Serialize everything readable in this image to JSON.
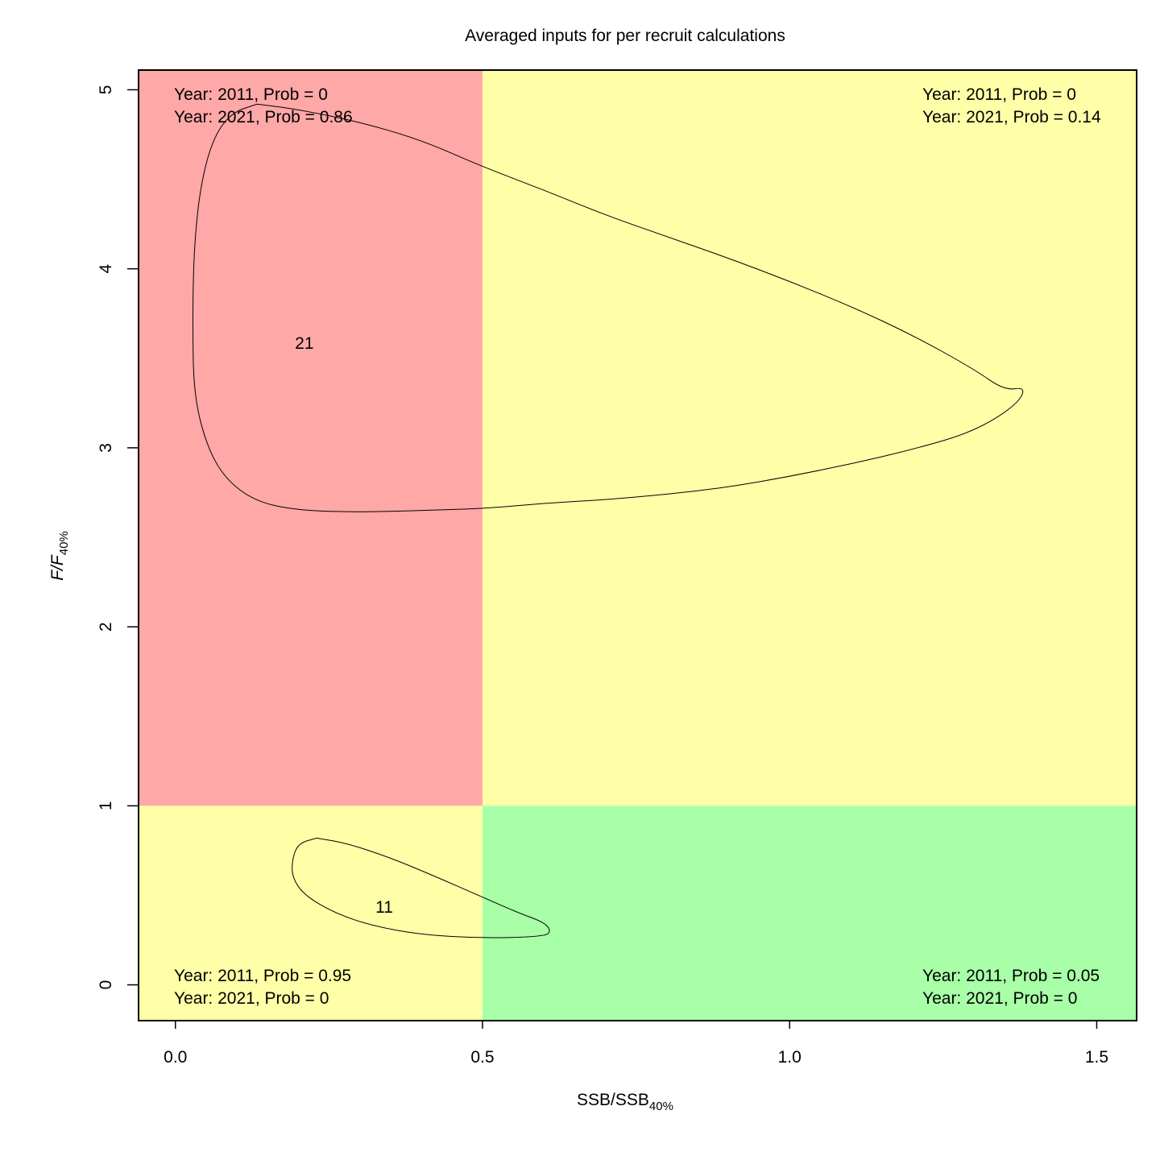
{
  "chart_data": {
    "type": "kobe-contour",
    "title": "Averaged inputs for per recruit calculations",
    "xlabel": {
      "main": "SSB/SSB",
      "sub": "40%"
    },
    "ylabel": {
      "main": "F/F",
      "sub": "40%"
    },
    "xlim": [
      -0.06,
      1.565
    ],
    "ylim": [
      -0.2,
      5.11
    ],
    "x_ticks": [
      0.0,
      0.5,
      1.0,
      1.5
    ],
    "x_tick_labels": [
      "0.0",
      "0.5",
      "1.0",
      "1.5"
    ],
    "y_ticks": [
      0,
      1,
      2,
      3,
      4,
      5
    ],
    "y_tick_labels": [
      "0",
      "1",
      "2",
      "3",
      "4",
      "5"
    ],
    "reference_x": 0.5,
    "reference_y": 1.0,
    "quadrants": [
      {
        "name": "top-left",
        "x": [
          -0.06,
          0.5
        ],
        "y": [
          1,
          5.11
        ],
        "color": "#ffa8a8",
        "lines": [
          "Year: 2011, Prob = 0",
          "Year: 2021, Prob = 0.86"
        ]
      },
      {
        "name": "top-right",
        "x": [
          0.5,
          1.565
        ],
        "y": [
          1,
          5.11
        ],
        "color": "#ffffa8",
        "lines": [
          "Year: 2011, Prob = 0",
          "Year: 2021, Prob = 0.14"
        ]
      },
      {
        "name": "bottom-left",
        "x": [
          -0.06,
          0.5
        ],
        "y": [
          -0.2,
          1
        ],
        "color": "#ffffa8",
        "lines": [
          "Year: 2011, Prob = 0.95",
          "Year: 2021, Prob = 0"
        ]
      },
      {
        "name": "bottom-right",
        "x": [
          0.5,
          1.565
        ],
        "y": [
          -0.2,
          1
        ],
        "color": "#a8ffa8",
        "lines": [
          "Year: 2011, Prob = 0.05",
          "Year: 2021, Prob = 0"
        ]
      }
    ],
    "series": [
      {
        "name": "21",
        "label": "21",
        "label_pos": [
          0.21,
          3.59
        ],
        "points": [
          [
            0.133,
            4.92
          ],
          [
            0.2,
            4.89
          ],
          [
            0.3,
            4.82
          ],
          [
            0.4,
            4.72
          ],
          [
            0.5,
            4.57
          ],
          [
            0.6,
            4.44
          ],
          [
            0.7,
            4.3
          ],
          [
            0.8,
            4.18
          ],
          [
            0.9,
            4.06
          ],
          [
            1.0,
            3.93
          ],
          [
            1.1,
            3.79
          ],
          [
            1.2,
            3.63
          ],
          [
            1.3,
            3.44
          ],
          [
            1.35,
            3.32
          ],
          [
            1.385,
            3.34
          ],
          [
            1.37,
            3.24
          ],
          [
            1.3,
            3.09
          ],
          [
            1.2,
            2.99
          ],
          [
            1.1,
            2.91
          ],
          [
            1.0,
            2.84
          ],
          [
            0.9,
            2.78
          ],
          [
            0.8,
            2.74
          ],
          [
            0.7,
            2.71
          ],
          [
            0.6,
            2.69
          ],
          [
            0.5,
            2.66
          ],
          [
            0.4,
            2.65
          ],
          [
            0.3,
            2.64
          ],
          [
            0.2,
            2.65
          ],
          [
            0.13,
            2.7
          ],
          [
            0.08,
            2.83
          ],
          [
            0.05,
            3.02
          ],
          [
            0.03,
            3.3
          ],
          [
            0.028,
            3.7
          ],
          [
            0.03,
            4.1
          ],
          [
            0.04,
            4.45
          ],
          [
            0.06,
            4.72
          ],
          [
            0.09,
            4.87
          ],
          [
            0.133,
            4.92
          ]
        ]
      },
      {
        "name": "11",
        "label": "11",
        "label_pos": [
          0.34,
          0.44
        ],
        "points": [
          [
            0.23,
            0.82
          ],
          [
            0.28,
            0.79
          ],
          [
            0.35,
            0.71
          ],
          [
            0.42,
            0.61
          ],
          [
            0.5,
            0.49
          ],
          [
            0.56,
            0.4
          ],
          [
            0.6,
            0.35
          ],
          [
            0.612,
            0.3
          ],
          [
            0.6,
            0.27
          ],
          [
            0.5,
            0.26
          ],
          [
            0.4,
            0.28
          ],
          [
            0.32,
            0.33
          ],
          [
            0.26,
            0.4
          ],
          [
            0.21,
            0.5
          ],
          [
            0.19,
            0.6
          ],
          [
            0.19,
            0.7
          ],
          [
            0.2,
            0.79
          ],
          [
            0.23,
            0.82
          ]
        ]
      }
    ]
  }
}
